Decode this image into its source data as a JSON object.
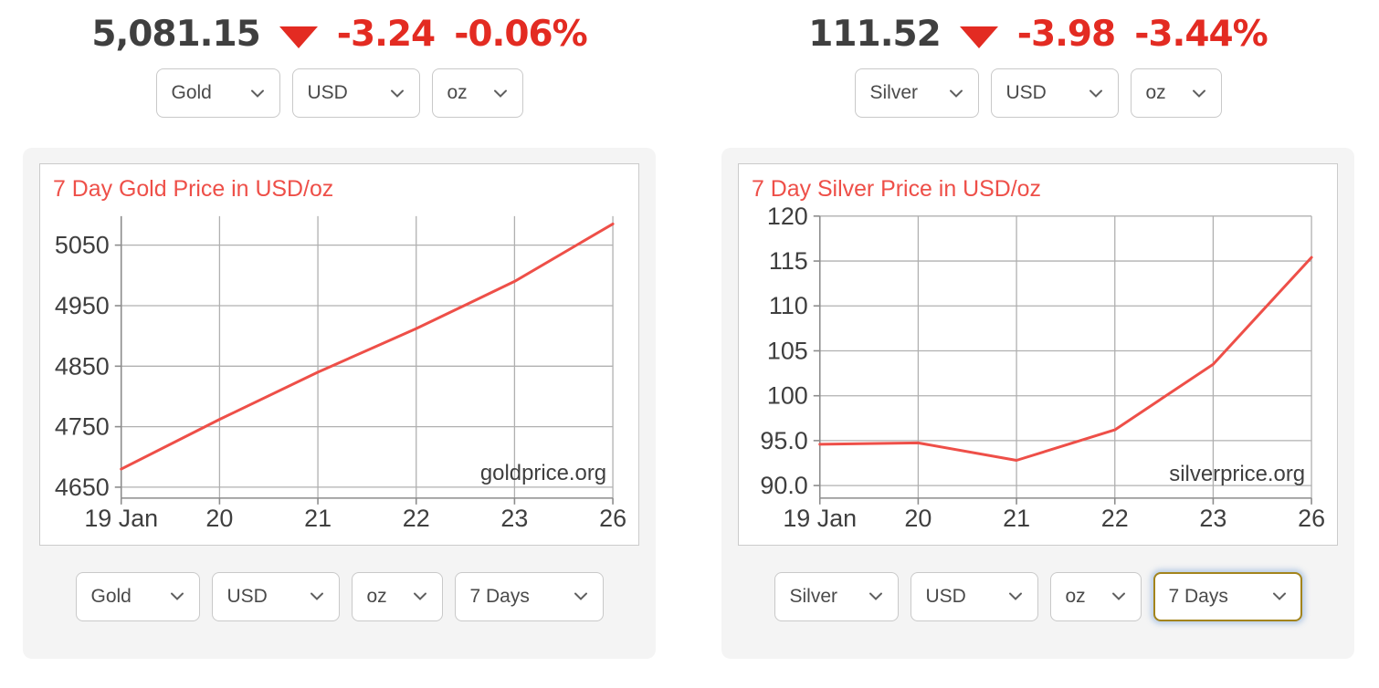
{
  "colors": {
    "negative_red": "#e32b22",
    "chart_red": "#ee4f48",
    "focus_border": "#a3841c"
  },
  "panels": [
    {
      "metal": "Gold",
      "quote": {
        "price": "5,081.15",
        "direction": "down",
        "change": "-3.24",
        "change_percent": "-0.06%"
      },
      "selects": {
        "metal": "Gold",
        "currency": "USD",
        "unit": "oz",
        "period": "7 Days"
      },
      "period_select_focused": false
    },
    {
      "metal": "Silver",
      "quote": {
        "price": "111.52",
        "direction": "down",
        "change": "-3.98",
        "change_percent": "-3.44%"
      },
      "selects": {
        "metal": "Silver",
        "currency": "USD",
        "unit": "oz",
        "period": "7 Days"
      },
      "period_select_focused": true
    }
  ],
  "chart_data": [
    {
      "type": "line",
      "title": "7 Day Gold Price in USD/oz",
      "xlabel": "",
      "ylabel": "",
      "x_labels": [
        "19 Jan",
        "20",
        "21",
        "22",
        "23",
        "26"
      ],
      "values": [
        4680,
        4762,
        4840,
        4912,
        4990,
        5085
      ],
      "y_ticks": [
        4650,
        4750,
        4850,
        4950,
        5050
      ],
      "y_tick_labels": [
        "4650",
        "4750",
        "4850",
        "4950",
        "5050"
      ],
      "ylim": [
        4632,
        5098
      ],
      "grid": true,
      "legend": "none",
      "watermark": "goldprice.org",
      "watermark_y": 347,
      "line_color": "#ee4f48",
      "title_color": "#ee4f48"
    },
    {
      "type": "line",
      "title": "7 Day Silver Price in USD/oz",
      "xlabel": "",
      "ylabel": "",
      "x_labels": [
        "19 Jan",
        "20",
        "21",
        "22",
        "23",
        "26"
      ],
      "values": [
        94.6,
        94.75,
        92.8,
        96.2,
        103.5,
        115.4
      ],
      "y_ticks": [
        90,
        95,
        100,
        105,
        110,
        115,
        120
      ],
      "y_tick_labels": [
        "90.0",
        "95.0",
        "100",
        "105",
        "110",
        "115",
        "120"
      ],
      "ylim": [
        88.6,
        120
      ],
      "grid": true,
      "legend": "none",
      "watermark": "silverprice.org",
      "watermark_y": 348,
      "line_color": "#ee4f48",
      "title_color": "#ee4f48"
    }
  ]
}
